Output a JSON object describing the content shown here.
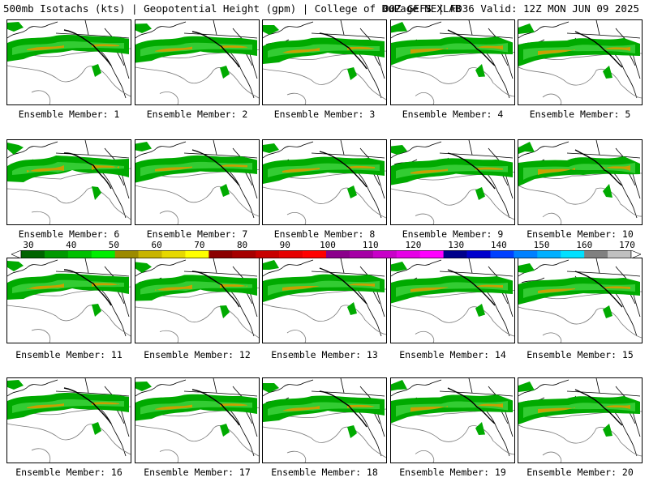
{
  "header": {
    "title": "500mb Isotachs (kts) | Geopotential Height (gpm) | College of DuPage NEXLAB",
    "run_info": "00Z GEFS | F036 Valid: 12Z MON JUN 09 2025"
  },
  "member_label_prefix": "Ensemble Member:",
  "members": [
    {
      "label": "Ensemble Member: 1"
    },
    {
      "label": "Ensemble Member: 2"
    },
    {
      "label": "Ensemble Member: 3"
    },
    {
      "label": "Ensemble Member: 4"
    },
    {
      "label": "Ensemble Member: 5"
    },
    {
      "label": "Ensemble Member: 6"
    },
    {
      "label": "Ensemble Member: 7"
    },
    {
      "label": "Ensemble Member: 8"
    },
    {
      "label": "Ensemble Member: 9"
    },
    {
      "label": "Ensemble Member: 10"
    },
    {
      "label": "Ensemble Member: 11"
    },
    {
      "label": "Ensemble Member: 12"
    },
    {
      "label": "Ensemble Member: 13"
    },
    {
      "label": "Ensemble Member: 14"
    },
    {
      "label": "Ensemble Member: 15"
    },
    {
      "label": "Ensemble Member: 16"
    },
    {
      "label": "Ensemble Member: 17"
    },
    {
      "label": "Ensemble Member: 18"
    },
    {
      "label": "Ensemble Member: 19"
    },
    {
      "label": "Ensemble Member: 20"
    }
  ],
  "colorbar": {
    "labels": [
      "30",
      "40",
      "50",
      "60",
      "70",
      "80",
      "90",
      "100",
      "110",
      "120",
      "130",
      "140",
      "150",
      "160",
      "170"
    ],
    "colors": [
      "#006400",
      "#009900",
      "#00c000",
      "#00ee00",
      "#9c8a00",
      "#c8b400",
      "#e6d800",
      "#ffff00",
      "#8b0000",
      "#a60000",
      "#c80000",
      "#e60000",
      "#ff0000",
      "#8b008b",
      "#a500a5",
      "#c800c8",
      "#e600e6",
      "#ff00ff",
      "#00008b",
      "#0000cd",
      "#0040ff",
      "#0080ff",
      "#00b0ff",
      "#00e0ff",
      "#808080",
      "#c0c0c0"
    ],
    "min_color": "#ffffff",
    "max_color": "#ffffff"
  },
  "map_colors": {
    "jet_weak": "#00aa00",
    "jet_mid": "#33cc33",
    "jet_core": "#c8a000",
    "height_contour": "#7a7a7a",
    "borders": "#000000"
  }
}
